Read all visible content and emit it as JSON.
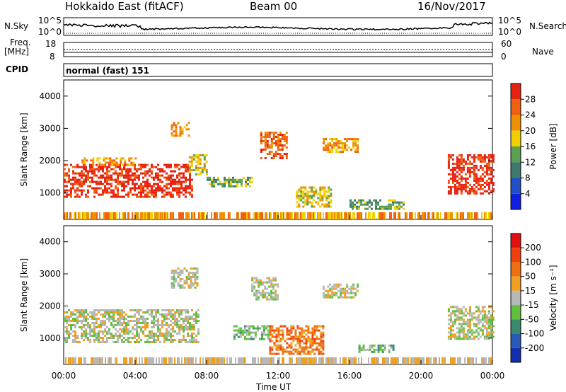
{
  "header": {
    "title": "Hokkaido East (fitACF)",
    "beam": "Beam 00",
    "date": "16/Nov/2017"
  },
  "aux": {
    "nsky_label": "N.Sky",
    "nsky_ticks": [
      "10^5",
      "10^0"
    ],
    "nsearch_ticks": [
      "10^5",
      "10^0"
    ],
    "nsearch_label": "N.Search",
    "freq_label": "Freq.",
    "freq_unit": "[MHz]",
    "freq_ticks": [
      "18",
      "8"
    ],
    "nave_ticks": [
      "60",
      "0"
    ],
    "nave_label": "Nave",
    "cpid_label": "CPID",
    "mode_text": "normal (fast) 151"
  },
  "chart_data": [
    {
      "type": "heatmap",
      "name": "power",
      "ylabel": "Slant Range [km]",
      "yticks": [
        1000,
        2000,
        3000,
        4000
      ],
      "ylim": [
        180,
        4500
      ],
      "xlim_hours": [
        0,
        24
      ],
      "colorbar_label": "Power [dB]",
      "colorbar_ticks": [
        "4",
        "8",
        "12",
        "16",
        "20",
        "24",
        "28"
      ],
      "colors": [
        "#1020e0",
        "#2050c8",
        "#3c7a6e",
        "#5aa050",
        "#f0d000",
        "#f09000",
        "#f06010",
        "#e82010"
      ],
      "regions": [
        {
          "t": [
            0.0,
            7.2
          ],
          "r": [
            900,
            1900
          ],
          "level": 7
        },
        {
          "t": [
            1.0,
            4.0
          ],
          "r": [
            1900,
            2100
          ],
          "level": 5
        },
        {
          "t": [
            6.0,
            7.0
          ],
          "r": [
            2800,
            3200
          ],
          "level": 5
        },
        {
          "t": [
            7.0,
            8.0
          ],
          "r": [
            1600,
            2200
          ],
          "level": 4
        },
        {
          "t": [
            8.0,
            10.5
          ],
          "r": [
            1200,
            1500
          ],
          "level": 3
        },
        {
          "t": [
            11.0,
            12.5
          ],
          "r": [
            2100,
            2900
          ],
          "level": 6
        },
        {
          "t": [
            13.0,
            15.0
          ],
          "r": [
            600,
            1200
          ],
          "level": 4
        },
        {
          "t": [
            14.5,
            16.5
          ],
          "r": [
            2300,
            2700
          ],
          "level": 5
        },
        {
          "t": [
            16.0,
            19.0
          ],
          "r": [
            500,
            800
          ],
          "level": 3
        },
        {
          "t": [
            21.5,
            24.0
          ],
          "r": [
            1000,
            2200
          ],
          "level": 7
        }
      ]
    },
    {
      "type": "heatmap",
      "name": "velocity",
      "ylabel": "Slant Range [km]",
      "yticks": [
        1000,
        2000,
        3000,
        4000
      ],
      "ylim": [
        180,
        4500
      ],
      "xlim_hours": [
        0,
        24
      ],
      "colorbar_label": "Velocity [m s⁻¹]",
      "colorbar_ticks": [
        "200",
        "100",
        "50",
        "15",
        "-15",
        "-50",
        "-100",
        "-200"
      ],
      "colors": [
        "#1030b0",
        "#2a5ab8",
        "#3a8a70",
        "#60c040",
        "#b8b8b8",
        "#f0a020",
        "#f07010",
        "#f04010",
        "#e01010"
      ],
      "regions": [
        {
          "t": [
            0.0,
            7.5
          ],
          "r": [
            900,
            1900
          ],
          "level": 4
        },
        {
          "t": [
            6.0,
            7.5
          ],
          "r": [
            2600,
            3200
          ],
          "level": 4
        },
        {
          "t": [
            10.5,
            12.0
          ],
          "r": [
            2200,
            2900
          ],
          "level": 4
        },
        {
          "t": [
            9.5,
            11.5
          ],
          "r": [
            1000,
            1400
          ],
          "level": 3
        },
        {
          "t": [
            11.5,
            14.5
          ],
          "r": [
            500,
            1400
          ],
          "level": 6
        },
        {
          "t": [
            14.5,
            16.5
          ],
          "r": [
            2300,
            2700
          ],
          "level": 4
        },
        {
          "t": [
            16.5,
            18.5
          ],
          "r": [
            600,
            800
          ],
          "level": 3
        },
        {
          "t": [
            21.5,
            24.0
          ],
          "r": [
            1000,
            2000
          ],
          "level": 4
        }
      ]
    }
  ],
  "xaxis": {
    "ticks": [
      "00:00",
      "04:00",
      "08:00",
      "12:00",
      "16:00",
      "20:00",
      "00:00"
    ],
    "label": "Time UT"
  }
}
